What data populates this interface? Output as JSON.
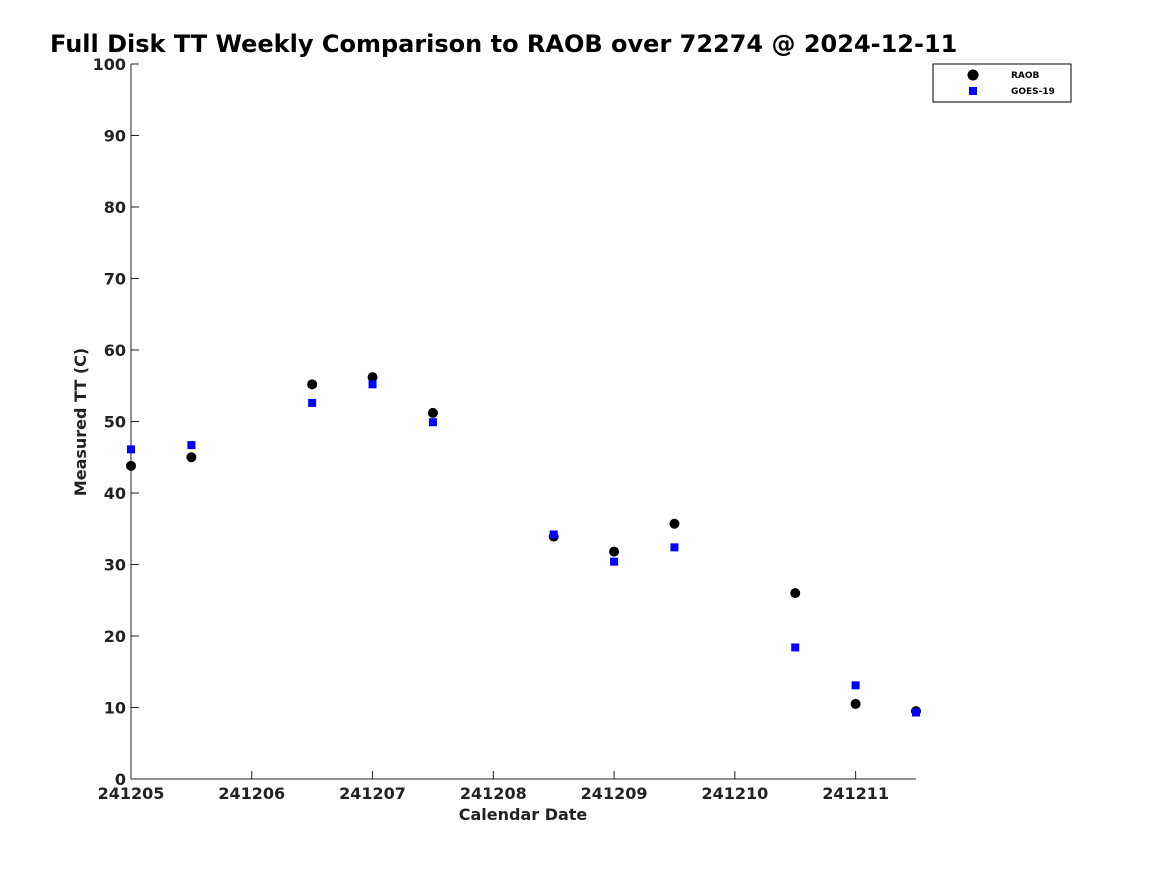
{
  "chart_data": {
    "type": "scatter",
    "title": "Full Disk TT Weekly Comparison to RAOB over 72274 @ 2024-12-11",
    "xlabel": "Calendar Date",
    "ylabel": "Measured TT (C)",
    "xlim": [
      0,
      6.5
    ],
    "ylim": [
      0,
      100
    ],
    "grid": false,
    "legend_position": "top-right",
    "x_ticks": [
      {
        "value": 0,
        "label": "241205"
      },
      {
        "value": 1,
        "label": "241206"
      },
      {
        "value": 2,
        "label": "241207"
      },
      {
        "value": 3,
        "label": "241208"
      },
      {
        "value": 4,
        "label": "241209"
      },
      {
        "value": 5,
        "label": "241210"
      },
      {
        "value": 6,
        "label": "241211"
      }
    ],
    "y_ticks": [
      {
        "value": 0,
        "label": "0"
      },
      {
        "value": 10,
        "label": "10"
      },
      {
        "value": 20,
        "label": "20"
      },
      {
        "value": 30,
        "label": "30"
      },
      {
        "value": 40,
        "label": "40"
      },
      {
        "value": 50,
        "label": "50"
      },
      {
        "value": 60,
        "label": "60"
      },
      {
        "value": 70,
        "label": "70"
      },
      {
        "value": 80,
        "label": "80"
      },
      {
        "value": 90,
        "label": "90"
      },
      {
        "value": 100,
        "label": "100"
      }
    ],
    "series": [
      {
        "name": "RAOB",
        "marker": "circle",
        "color": "#000000",
        "x": [
          0,
          0.5,
          1.5,
          2,
          2.5,
          3.5,
          4,
          4.5,
          5.5,
          6,
          6.5
        ],
        "y": [
          43.8,
          45.0,
          55.2,
          56.2,
          51.2,
          33.9,
          31.8,
          35.7,
          26.0,
          10.5,
          9.5
        ]
      },
      {
        "name": "GOES-19",
        "marker": "square",
        "color": "#0000ff",
        "x": [
          0,
          0.5,
          1.5,
          2,
          2.5,
          3.5,
          4,
          4.5,
          5.5,
          6,
          6.5
        ],
        "y": [
          46.1,
          46.7,
          52.6,
          55.2,
          49.9,
          34.2,
          30.4,
          32.4,
          18.4,
          13.1,
          9.3
        ]
      }
    ]
  }
}
